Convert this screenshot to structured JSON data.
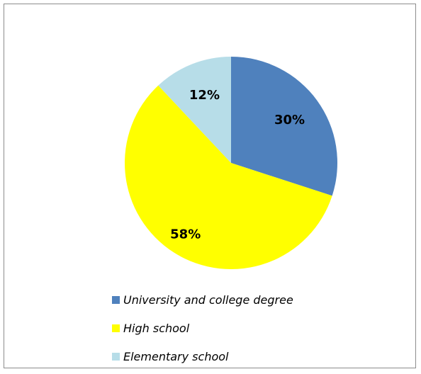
{
  "chart_data": {
    "type": "pie",
    "slices": [
      {
        "name": "University and college degree",
        "value": 30,
        "label": "30%",
        "color": "#4f81bd"
      },
      {
        "name": "High school",
        "value": 58,
        "label": "58%",
        "color": "#ffff00"
      },
      {
        "name": "Elementary school",
        "value": 12,
        "label": "12%",
        "color": "#b7dde8"
      }
    ],
    "start_angle": "12 o'clock",
    "direction": "clockwise",
    "legend_position": "bottom"
  }
}
